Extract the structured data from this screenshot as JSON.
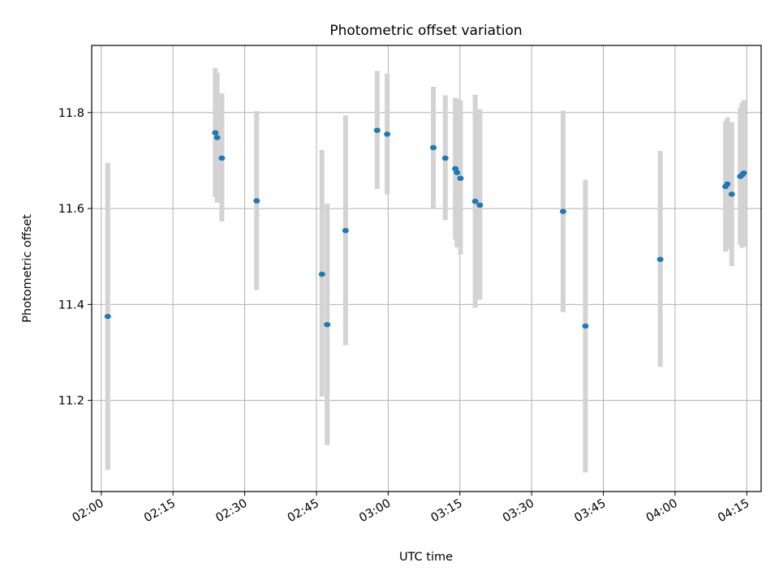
{
  "chart_data": {
    "type": "scatter",
    "title": "Photometric offset variation",
    "xlabel": "UTC time",
    "ylabel": "Photometric offset",
    "x_unit": "UTC time (HH:MM:SS)",
    "xlim": [
      "01:58:00",
      "04:18:00"
    ],
    "ylim": [
      11.01,
      11.94
    ],
    "x_ticks": [
      "02:00",
      "02:15",
      "02:30",
      "02:45",
      "03:00",
      "03:15",
      "03:30",
      "03:45",
      "04:00",
      "04:15"
    ],
    "y_ticks": [
      11.2,
      11.4,
      11.6,
      11.8
    ],
    "grid": true,
    "colors": {
      "point": "#1f77b4",
      "errorbar": "#d3d3d3"
    },
    "series": [
      {
        "points": [
          {
            "x": "02:01:21",
            "y": 11.375,
            "ylow": 11.055,
            "yhigh": 11.695
          },
          {
            "x": "02:23:51",
            "y": 11.758,
            "ylow": 11.624,
            "yhigh": 11.893
          },
          {
            "x": "02:24:14",
            "y": 11.748,
            "ylow": 11.612,
            "yhigh": 11.883
          },
          {
            "x": "02:25:13",
            "y": 11.705,
            "ylow": 11.573,
            "yhigh": 11.84
          },
          {
            "x": "02:32:30",
            "y": 11.616,
            "ylow": 11.43,
            "yhigh": 11.803
          },
          {
            "x": "02:46:09",
            "y": 11.463,
            "ylow": 11.208,
            "yhigh": 11.722
          },
          {
            "x": "02:47:15",
            "y": 11.358,
            "ylow": 11.107,
            "yhigh": 11.61
          },
          {
            "x": "02:51:05",
            "y": 11.554,
            "ylow": 11.315,
            "yhigh": 11.794
          },
          {
            "x": "02:57:42",
            "y": 11.763,
            "ylow": 11.641,
            "yhigh": 11.887
          },
          {
            "x": "02:59:48",
            "y": 11.755,
            "ylow": 11.629,
            "yhigh": 11.881
          },
          {
            "x": "03:09:27",
            "y": 11.727,
            "ylow": 11.6,
            "yhigh": 11.854
          },
          {
            "x": "03:11:57",
            "y": 11.705,
            "ylow": 11.576,
            "yhigh": 11.836
          },
          {
            "x": "03:14:03",
            "y": 11.683,
            "ylow": 11.535,
            "yhigh": 11.831
          },
          {
            "x": "03:14:24",
            "y": 11.675,
            "ylow": 11.519,
            "yhigh": 11.828
          },
          {
            "x": "03:15:07",
            "y": 11.663,
            "ylow": 11.504,
            "yhigh": 11.826
          },
          {
            "x": "03:18:12",
            "y": 11.615,
            "ylow": 11.393,
            "yhigh": 11.837
          },
          {
            "x": "03:19:11",
            "y": 11.607,
            "ylow": 11.41,
            "yhigh": 11.807
          },
          {
            "x": "03:36:35",
            "y": 11.594,
            "ylow": 11.384,
            "yhigh": 11.804
          },
          {
            "x": "03:41:15",
            "y": 11.355,
            "ylow": 11.05,
            "yhigh": 11.66
          },
          {
            "x": "03:56:54",
            "y": 11.494,
            "ylow": 11.27,
            "yhigh": 11.72
          },
          {
            "x": "04:10:33",
            "y": 11.646,
            "ylow": 11.51,
            "yhigh": 11.782
          },
          {
            "x": "04:10:56",
            "y": 11.651,
            "ylow": 11.515,
            "yhigh": 11.79
          },
          {
            "x": "04:11:51",
            "y": 11.63,
            "ylow": 11.48,
            "yhigh": 11.78
          },
          {
            "x": "04:13:38",
            "y": 11.667,
            "ylow": 11.524,
            "yhigh": 11.811
          },
          {
            "x": "04:14:00",
            "y": 11.67,
            "ylow": 11.518,
            "yhigh": 11.82
          },
          {
            "x": "04:14:22",
            "y": 11.674,
            "ylow": 11.521,
            "yhigh": 11.826
          }
        ]
      }
    ]
  }
}
